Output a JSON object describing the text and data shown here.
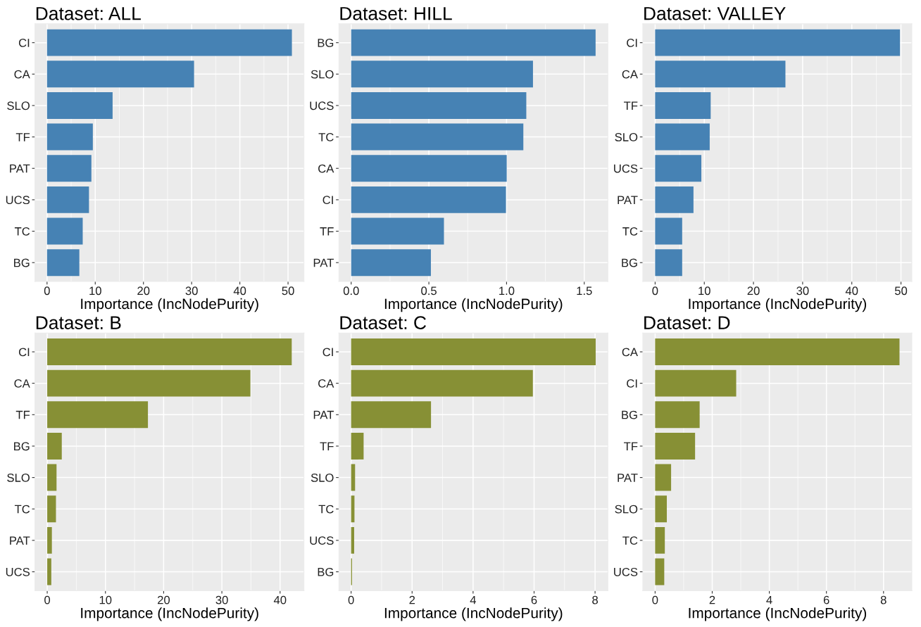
{
  "chart_data": [
    {
      "type": "bar",
      "orientation": "horizontal",
      "title": "Dataset: ALL",
      "xlabel": "Importance (IncNodePurity)",
      "categories": [
        "CI",
        "CA",
        "SLO",
        "TF",
        "PAT",
        "UCS",
        "TC",
        "BG"
      ],
      "values": [
        50.8,
        30.5,
        13.6,
        9.5,
        9.2,
        8.7,
        7.4,
        6.7
      ],
      "color": "#4682b4",
      "xlim": [
        -2.5,
        53.3
      ],
      "xticks": [
        0,
        10,
        20,
        30,
        40,
        50
      ],
      "grid": true
    },
    {
      "type": "bar",
      "orientation": "horizontal",
      "title": "Dataset: HILL",
      "xlabel": "Importance (IncNodePurity)",
      "categories": [
        "BG",
        "SLO",
        "UCS",
        "TC",
        "CA",
        "CI",
        "TF",
        "PAT"
      ],
      "values": [
        1.573,
        1.17,
        1.127,
        1.108,
        1.001,
        0.996,
        0.597,
        0.513
      ],
      "color": "#4682b4",
      "xlim": [
        -0.079,
        1.652
      ],
      "xticks": [
        {
          "value": 0,
          "label": "0.0"
        },
        0.5,
        {
          "value": 1,
          "label": "1.0"
        },
        1.5
      ],
      "grid": true
    },
    {
      "type": "bar",
      "orientation": "horizontal",
      "title": "Dataset: VALLEY",
      "xlabel": "Importance (IncNodePurity)",
      "categories": [
        "CI",
        "CA",
        "TF",
        "SLO",
        "UCS",
        "PAT",
        "TC",
        "BG"
      ],
      "values": [
        49.8,
        26.5,
        11.3,
        11.1,
        9.4,
        7.8,
        5.5,
        5.5
      ],
      "color": "#4682b4",
      "xlim": [
        -2.5,
        52.2
      ],
      "xticks": [
        0,
        10,
        20,
        30,
        40,
        50
      ],
      "grid": true
    },
    {
      "type": "bar",
      "orientation": "horizontal",
      "title": "Dataset: B",
      "xlabel": "Importance (IncNodePurity)",
      "categories": [
        "CI",
        "CA",
        "TF",
        "BG",
        "SLO",
        "TC",
        "PAT",
        "UCS"
      ],
      "values": [
        42.0,
        34.9,
        17.3,
        2.5,
        1.6,
        1.5,
        0.8,
        0.7
      ],
      "color": "#879035",
      "xlim": [
        -2.1,
        44.1
      ],
      "xticks": [
        0,
        10,
        20,
        30,
        40
      ],
      "grid": true
    },
    {
      "type": "bar",
      "orientation": "horizontal",
      "title": "Dataset: C",
      "xlabel": "Importance (IncNodePurity)",
      "categories": [
        "CI",
        "CA",
        "PAT",
        "TF",
        "SLO",
        "TC",
        "UCS",
        "BG"
      ],
      "values": [
        8.02,
        5.96,
        2.62,
        0.41,
        0.13,
        0.11,
        0.1,
        0.03
      ],
      "color": "#879035",
      "xlim": [
        -0.4,
        8.42
      ],
      "xticks": [
        0,
        2,
        4,
        6,
        8
      ],
      "grid": true
    },
    {
      "type": "bar",
      "orientation": "horizontal",
      "title": "Dataset: D",
      "xlabel": "Importance (IncNodePurity)",
      "categories": [
        "CA",
        "CI",
        "BG",
        "TF",
        "PAT",
        "SLO",
        "TC",
        "UCS"
      ],
      "values": [
        8.56,
        2.84,
        1.56,
        1.4,
        0.56,
        0.41,
        0.34,
        0.32
      ],
      "color": "#879035",
      "xlim": [
        -0.43,
        8.99
      ],
      "xticks": [
        0,
        2,
        4,
        6,
        8
      ],
      "grid": true
    }
  ]
}
